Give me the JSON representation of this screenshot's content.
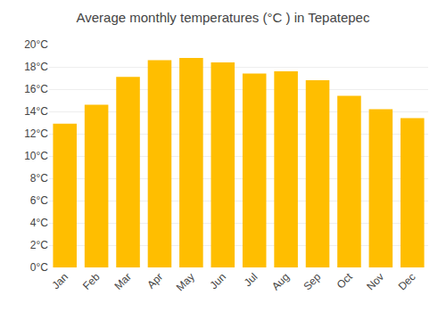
{
  "chart_data": {
    "type": "bar",
    "title": "Average monthly temperatures (°C ) in Tepatepec",
    "categories": [
      "Jan",
      "Feb",
      "Mar",
      "Apr",
      "May",
      "Jun",
      "Jul",
      "Aug",
      "Sep",
      "Oct",
      "Nov",
      "Dec"
    ],
    "values": [
      12.9,
      14.6,
      17.1,
      18.6,
      18.8,
      18.4,
      17.4,
      17.6,
      16.8,
      15.4,
      14.2,
      13.4
    ],
    "color": "#FFBE00",
    "ylim": [
      0,
      20
    ],
    "yticks": [
      {
        "value": 0,
        "label": "0°C"
      },
      {
        "value": 2,
        "label": "2°C"
      },
      {
        "value": 4,
        "label": "4°C"
      },
      {
        "value": 6,
        "label": "6°C"
      },
      {
        "value": 8,
        "label": "8°C"
      },
      {
        "value": 10,
        "label": "10°C"
      },
      {
        "value": 12,
        "label": "12°C"
      },
      {
        "value": 14,
        "label": "14°C"
      },
      {
        "value": 16,
        "label": "16°C"
      },
      {
        "value": 18,
        "label": "18°C"
      },
      {
        "value": 20,
        "label": "20°C"
      }
    ],
    "grid": true
  }
}
